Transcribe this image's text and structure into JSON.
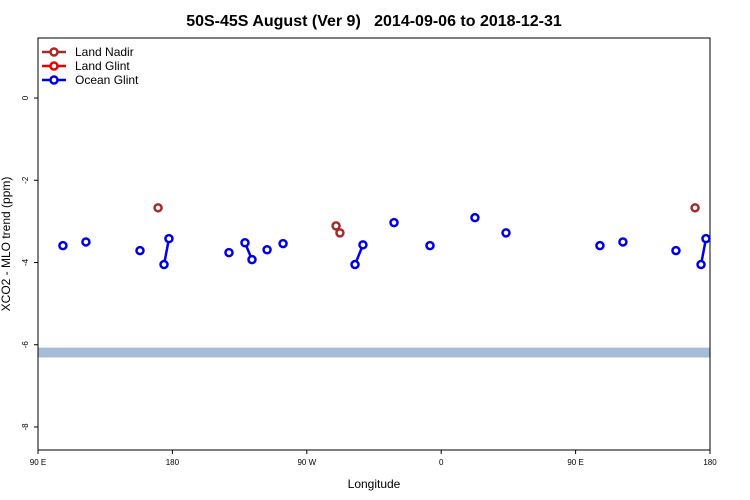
{
  "chart_data": {
    "type": "line",
    "title": "50S-45S August (Ver 9)   2014-09-06 to 2018-12-31",
    "xlabel": "Longitude",
    "ylabel": "XCO2 - MLO trend (ppm)",
    "xlim": [
      90,
      540
    ],
    "ylim": [
      -8.56,
      1.46
    ],
    "xticks": [
      {
        "value": 90,
        "label": "90 E"
      },
      180,
      {
        "value": 270,
        "label": "90 W"
      },
      {
        "value": 360,
        "label": "0"
      },
      {
        "value": 450,
        "label": "90 E"
      },
      {
        "value": 540,
        "label": "180"
      }
    ],
    "yticks": [
      0,
      -2,
      -4,
      -6,
      -8
    ],
    "band": {
      "ylim": [
        -6.31,
        -6.07
      ],
      "color": "#a7bcd9"
    },
    "legend": "top-left",
    "series": [
      {
        "name": "Land Nadir",
        "color": "#a52a2a",
        "x": [
          170.4,
          null,
          289.6,
          292.2,
          null,
          530.0
        ],
        "values": [
          -2.67,
          null,
          -3.11,
          -3.28,
          null,
          -2.67
        ]
      },
      {
        "name": "Land Glint",
        "color": "#ee0000",
        "x": [],
        "values": []
      },
      {
        "name": "Ocean Glint",
        "color": "#0000e6",
        "x": [
          106.7,
          null,
          122.1,
          null,
          158.3,
          null,
          174.4,
          177.7,
          null,
          217.9,
          null,
          228.6,
          233.3,
          null,
          243.4,
          null,
          254.1,
          null,
          302.3,
          307.6,
          null,
          328.4,
          null,
          352.5,
          null,
          382.6,
          null,
          403.4,
          null,
          466.3,
          null,
          481.7,
          null,
          517.2,
          null,
          534.0,
          537.3
        ],
        "values": [
          -3.59,
          null,
          -3.5,
          null,
          -3.71,
          null,
          -4.05,
          -3.42,
          null,
          -3.76,
          null,
          -3.52,
          -3.93,
          null,
          -3.69,
          null,
          -3.54,
          null,
          -4.05,
          -3.57,
          null,
          -3.03,
          null,
          -3.59,
          null,
          -2.91,
          null,
          -3.28,
          null,
          -3.59,
          null,
          -3.5,
          null,
          -3.71,
          null,
          -4.05,
          -3.42
        ]
      }
    ]
  }
}
